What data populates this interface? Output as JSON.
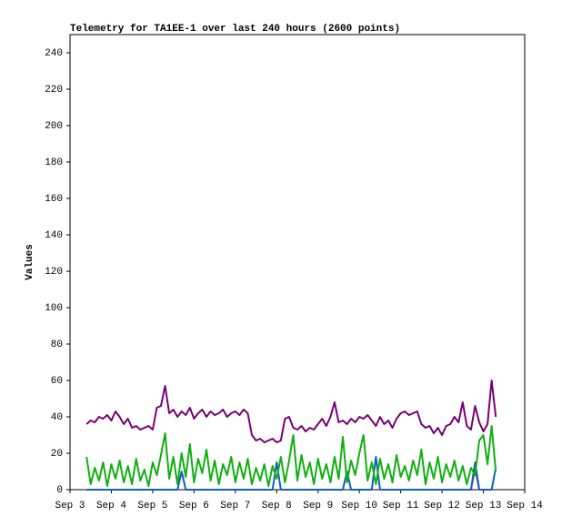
{
  "chart_data": {
    "type": "line",
    "title": "Telemetry for TA1EE-1 over last 240 hours (2600 points)",
    "y_label": "Values",
    "x": [
      3.4,
      3.5,
      3.6,
      3.7,
      3.8,
      3.9,
      4.0,
      4.1,
      4.2,
      4.3,
      4.4,
      4.5,
      4.6,
      4.7,
      4.8,
      4.9,
      5.0,
      5.1,
      5.2,
      5.3,
      5.4,
      5.5,
      5.6,
      5.7,
      5.8,
      5.9,
      6.0,
      6.1,
      6.2,
      6.3,
      6.4,
      6.5,
      6.6,
      6.7,
      6.8,
      6.9,
      7.0,
      7.1,
      7.2,
      7.3,
      7.4,
      7.5,
      7.6,
      7.7,
      7.8,
      7.9,
      8.0,
      8.1,
      8.2,
      8.3,
      8.4,
      8.5,
      8.6,
      8.7,
      8.8,
      8.9,
      9.0,
      9.1,
      9.2,
      9.3,
      9.4,
      9.5,
      9.6,
      9.7,
      9.8,
      9.9,
      10.0,
      10.1,
      10.2,
      10.3,
      10.4,
      10.5,
      10.6,
      10.7,
      10.8,
      10.9,
      11.0,
      11.1,
      11.2,
      11.3,
      11.4,
      11.5,
      11.6,
      11.7,
      11.8,
      11.9,
      12.0,
      12.1,
      12.2,
      12.3,
      12.4,
      12.5,
      12.6,
      12.7,
      12.8,
      12.9,
      13.0,
      13.1,
      13.2,
      13.3
    ],
    "series": [
      {
        "color": "#cc2233",
        "values": [
          null,
          null,
          null,
          null,
          null,
          null,
          null,
          null,
          null,
          null,
          null,
          null,
          null,
          null,
          null,
          null,
          null,
          null,
          null,
          null,
          null,
          null,
          null,
          null,
          null,
          null,
          null,
          null,
          null,
          null,
          null,
          null,
          null,
          null,
          null,
          null,
          null,
          null,
          null,
          null,
          null,
          null,
          null,
          null,
          null,
          null,
          null,
          null,
          null,
          null,
          null,
          null,
          null,
          null,
          null,
          null,
          null,
          null,
          null,
          null,
          null,
          null,
          null,
          null,
          null,
          null,
          null,
          null,
          null,
          null,
          null,
          null,
          null,
          null,
          null,
          null,
          null,
          null,
          null,
          null,
          null,
          null,
          null,
          null,
          null,
          null,
          null,
          null,
          null,
          null,
          null,
          null,
          null,
          0,
          12,
          0,
          null,
          null,
          null,
          null
        ]
      },
      {
        "color": "#1060c0",
        "values": [
          0,
          0,
          0,
          0,
          0,
          0,
          0,
          0,
          0,
          0,
          0,
          0,
          0,
          0,
          0,
          0,
          0,
          0,
          0,
          0,
          0,
          0,
          0,
          10,
          0,
          0,
          0,
          0,
          0,
          0,
          0,
          0,
          0,
          0,
          0,
          0,
          0,
          0,
          0,
          0,
          0,
          0,
          0,
          0,
          0,
          0,
          15,
          0,
          0,
          0,
          0,
          0,
          0,
          0,
          0,
          0,
          0,
          0,
          0,
          0,
          0,
          0,
          0,
          10,
          0,
          0,
          0,
          0,
          0,
          0,
          18,
          0,
          0,
          0,
          0,
          0,
          0,
          0,
          0,
          0,
          0,
          0,
          0,
          0,
          0,
          0,
          0,
          0,
          0,
          0,
          0,
          0,
          0,
          0,
          15,
          0,
          0,
          0,
          0,
          12
        ]
      },
      {
        "color": "#10b010",
        "values": [
          18,
          3,
          12,
          5,
          15,
          2,
          14,
          6,
          16,
          4,
          13,
          3,
          17,
          5,
          11,
          2,
          15,
          8,
          19,
          31,
          6,
          18,
          3,
          20,
          7,
          25,
          4,
          17,
          9,
          22,
          5,
          16,
          3,
          14,
          8,
          18,
          4,
          15,
          6,
          17,
          3,
          12,
          5,
          14,
          2,
          13,
          6,
          18,
          4,
          16,
          30,
          5,
          19,
          7,
          15,
          3,
          17,
          6,
          14,
          4,
          18,
          6,
          29,
          4,
          16,
          8,
          20,
          30,
          5,
          15,
          3,
          17,
          6,
          14,
          4,
          19,
          7,
          13,
          5,
          16,
          8,
          22,
          3,
          15,
          6,
          18,
          4,
          14,
          7,
          16,
          5,
          13,
          3,
          12,
          8,
          27,
          30,
          14,
          35,
          10
        ]
      },
      {
        "color": "#770077",
        "values": [
          36,
          38,
          37,
          40,
          39,
          41,
          38,
          43,
          40,
          36,
          39,
          34,
          35,
          33,
          34,
          35,
          33,
          45,
          46,
          57,
          42,
          44,
          40,
          43,
          41,
          45,
          39,
          42,
          44,
          40,
          43,
          41,
          42,
          44,
          40,
          42,
          43,
          41,
          44,
          42,
          30,
          27,
          28,
          26,
          27,
          28,
          26,
          27,
          39,
          40,
          34,
          33,
          35,
          32,
          34,
          33,
          36,
          39,
          35,
          40,
          48,
          37,
          38,
          36,
          39,
          37,
          40,
          39,
          41,
          38,
          35,
          40,
          36,
          38,
          34,
          39,
          42,
          43,
          41,
          42,
          43,
          36,
          34,
          35,
          31,
          34,
          30,
          35,
          36,
          40,
          37,
          48,
          35,
          33,
          46,
          37,
          32,
          36,
          60,
          40
        ]
      }
    ],
    "xlim": [
      3,
      14
    ],
    "xticks": [
      {
        "value": 3,
        "label": "Sep 3"
      },
      {
        "value": 4,
        "label": "Sep 4"
      },
      {
        "value": 5,
        "label": "Sep 5"
      },
      {
        "value": 6,
        "label": "Sep 6"
      },
      {
        "value": 7,
        "label": "Sep 7"
      },
      {
        "value": 8,
        "label": "Sep 8"
      },
      {
        "value": 9,
        "label": "Sep 9"
      },
      {
        "value": 10,
        "label": "Sep 10"
      },
      {
        "value": 11,
        "label": "Sep 11"
      },
      {
        "value": 12,
        "label": "Sep 12"
      },
      {
        "value": 13,
        "label": "Sep 13"
      },
      {
        "value": 14,
        "label": "Sep 14"
      }
    ],
    "ylim": [
      0,
      250
    ],
    "yticks": [
      0,
      20,
      40,
      60,
      80,
      100,
      120,
      140,
      160,
      180,
      200,
      220,
      240
    ]
  }
}
